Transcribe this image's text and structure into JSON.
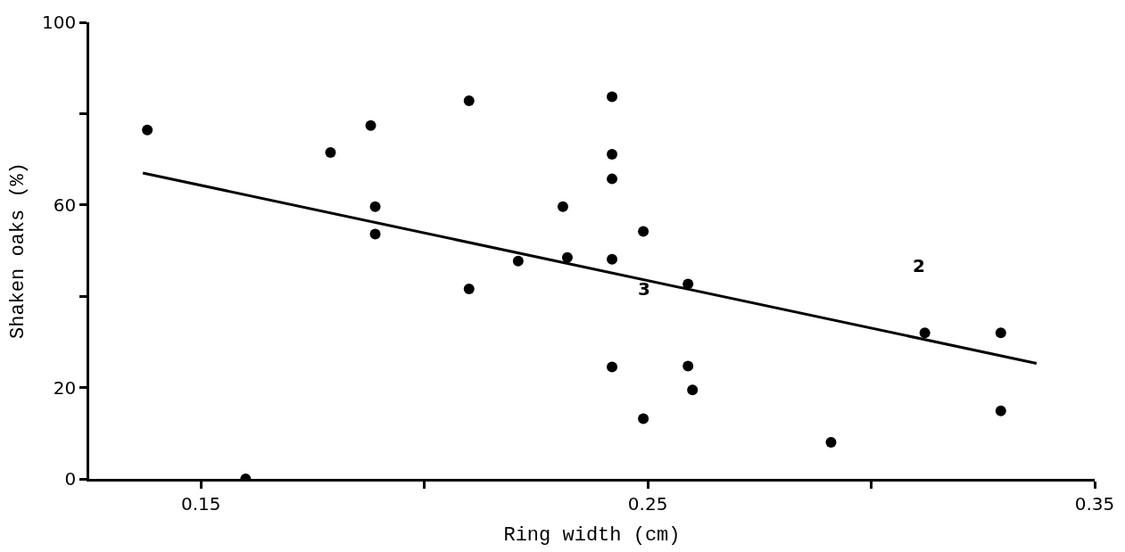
{
  "chart_data": {
    "type": "scatter",
    "xlabel": "Ring width (cm)",
    "ylabel": "Shaken oaks (%)",
    "xlim": [
      0.125,
      0.35
    ],
    "ylim": [
      0,
      100
    ],
    "xticks": [
      0.15,
      {
        "value": 0.2,
        "label": null
      },
      0.25,
      {
        "value": 0.3,
        "label": null
      },
      0.35
    ],
    "yticks": [
      0,
      20,
      {
        "value": 40,
        "label": null
      },
      60,
      {
        "value": 80,
        "label": null
      },
      100
    ],
    "series": [
      {
        "color": "#000000",
        "marker": "circle",
        "x": [
          0.138,
          0.16,
          0.179,
          0.188,
          0.189,
          0.189,
          0.21,
          0.21,
          0.221,
          0.231,
          0.232,
          0.242,
          0.242,
          0.242,
          0.242,
          0.242,
          0.249,
          0.249,
          0.259,
          0.259,
          0.26,
          0.291,
          0.312,
          0.329,
          0.329
        ],
        "values": [
          76.4,
          0,
          71.5,
          77.4,
          59.6,
          53.6,
          82.8,
          41.6,
          47.7,
          59.6,
          48.5,
          83.7,
          71.1,
          65.7,
          48.1,
          24.5,
          54.2,
          13.2,
          42.7,
          24.7,
          19.5,
          8.0,
          32.0,
          32.0,
          14.9
        ]
      },
      {
        "type": "line",
        "color": "#000000",
        "line_style": "solid",
        "x": [
          0.137,
          0.337
        ],
        "values": [
          67.0,
          25.3
        ]
      }
    ],
    "annotations": [
      "3",
      "2"
    ]
  }
}
